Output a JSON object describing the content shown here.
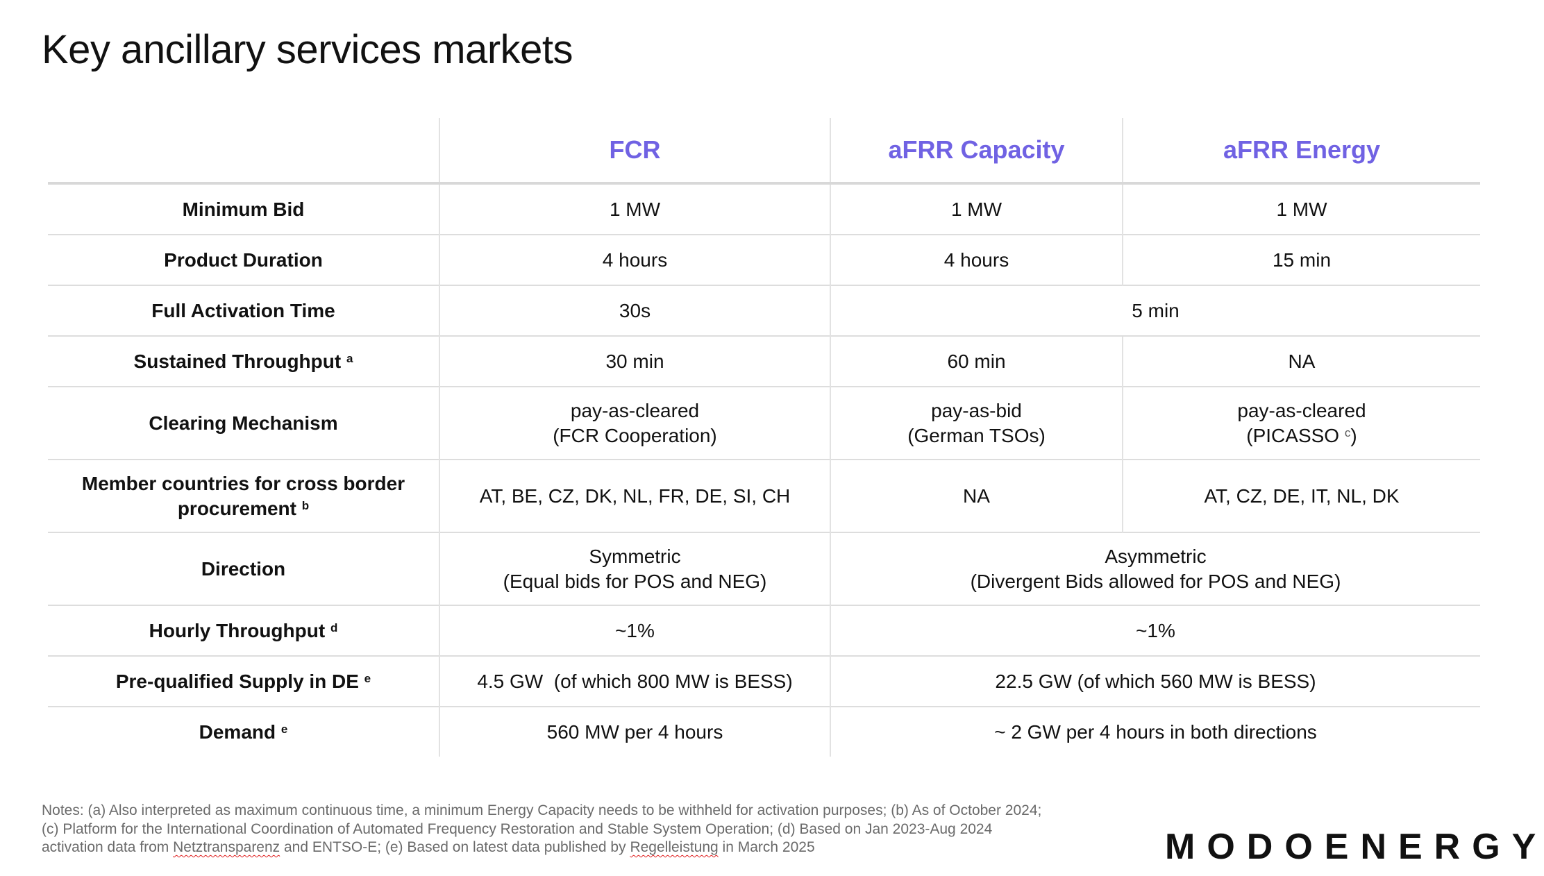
{
  "title": "Key ancillary services markets",
  "colors": {
    "header_accent": "#7062e3",
    "notes_text": "#6a6a6a",
    "squiggle": "#e02020"
  },
  "columns": [
    "",
    "FCR",
    "aFRR Capacity",
    "aFRR Energy"
  ],
  "rows": [
    {
      "label": "Minimum Bid",
      "fcr": "1 MW",
      "cap": "1 MW",
      "energy": "1 MW"
    },
    {
      "label": "Product Duration",
      "fcr": "4 hours",
      "cap": "4 hours",
      "energy": "15 min"
    },
    {
      "label": "Full Activation Time",
      "fcr": "30s",
      "afrr": "5 min"
    },
    {
      "label": "Sustained Throughput",
      "sup": "a",
      "fcr": "30 min",
      "cap": "60 min",
      "energy": "NA"
    },
    {
      "label": "Clearing Mechanism",
      "fcr": "pay-as-cleared",
      "fcr2": "(FCR Cooperation)",
      "cap": "pay-as-bid",
      "cap2": "(German TSOs)",
      "energy": "pay-as-cleared",
      "energy2a": "(PICASSO ",
      "energy2sup": "c",
      "energy2b": ")"
    },
    {
      "label": "Member countries for cross border",
      "label2": "procurement",
      "sup": "b",
      "fcr": "AT, BE, CZ, DK, NL, FR, DE, SI, CH",
      "cap": "NA",
      "energy": "AT, CZ, DE, IT, NL, DK"
    },
    {
      "label": "Direction",
      "fcr": "Symmetric",
      "fcr2": "(Equal bids for POS and NEG)",
      "afrr": "Asymmetric",
      "afrr2": "(Divergent Bids allowed for POS and NEG)"
    },
    {
      "label": "Hourly Throughput",
      "sup": "d",
      "fcr": "~1%",
      "afrr": "~1%"
    },
    {
      "label": "Pre-qualified Supply in DE",
      "sup": "e",
      "fcr": "4.5 GW  (of which 800 MW is BESS)",
      "afrr": "22.5 GW (of which 560 MW is BESS)"
    },
    {
      "label": "Demand",
      "sup": "e",
      "fcr": "560 MW per 4 hours",
      "afrr": "~ 2 GW per 4 hours in both directions"
    }
  ],
  "notes": {
    "l1": "Notes: (a) Also interpreted as maximum continuous time, a minimum Energy Capacity needs to be withheld for activation purposes; (b) As of October 2024;",
    "l2": "(c) Platform for the International Coordination of Automated Frequency Restoration and Stable System Operation; (d) Based on Jan 2023-Aug 2024",
    "l3a": "activation data from ",
    "l3b": "Netztransparenz",
    "l3c": " and ENTSO-E; (e) Based on latest data published by ",
    "l3d": "Regelleistung",
    "l3e": " in March 2025"
  },
  "logo": "MODOENERGY"
}
